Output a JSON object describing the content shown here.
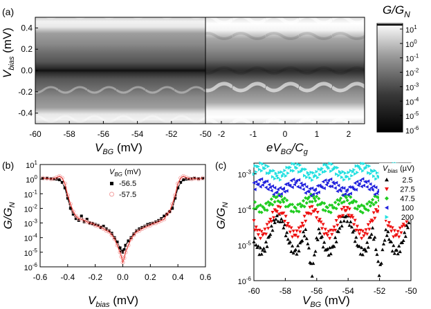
{
  "chart_data": [
    {
      "panel": "(a)",
      "type": "heatmap",
      "subplots": [
        {
          "xlabel_main": "V",
          "xlabel_sub": "BG",
          "xlabel_unit": " (mV)",
          "xlim": [
            -60,
            -50
          ],
          "xticks": [
            "-60",
            "-58",
            "-56",
            "-54",
            "-52",
            "-50"
          ]
        },
        {
          "xlabel_main": "eV",
          "xlabel_sub": "BG",
          "xlabel_tail": "/C",
          "xlabel_tail_sub": "g",
          "xlim": [
            -2.5,
            2.5
          ],
          "xticks": [
            "-2",
            "-1",
            "0",
            "1",
            "2"
          ]
        }
      ],
      "ylabel_main": "V",
      "ylabel_sub": "bias",
      "ylabel_unit": " (mV)",
      "ylim": [
        -0.5,
        0.5
      ],
      "yticks": [
        "0.4",
        "0.2",
        "0.0",
        "-0.2",
        "-0.4"
      ],
      "colorbar": {
        "label_main": "G/G",
        "label_sub": "N",
        "scale": "log",
        "range": [
          1e-06,
          10
        ],
        "ticks": [
          {
            "b": "10",
            "e": "1"
          },
          {
            "b": "10",
            "e": "0"
          },
          {
            "b": "10",
            "e": "-1"
          },
          {
            "b": "10",
            "e": "-2"
          },
          {
            "b": "10",
            "e": "-3"
          },
          {
            "b": "10",
            "e": "-4"
          },
          {
            "b": "10",
            "e": "-5"
          },
          {
            "b": "10",
            "e": "-6"
          }
        ]
      }
    },
    {
      "panel": "(b)",
      "type": "scatter",
      "xlabel_main": "V",
      "xlabel_sub": "bias",
      "xlabel_unit": " (mV)",
      "ylabel_main": "G/G",
      "ylabel_sub": "N",
      "xlim": [
        -0.6,
        0.6
      ],
      "ylim": [
        1e-06,
        10
      ],
      "yscale": "log",
      "xticks": [
        "-0.6",
        "-0.4",
        "-0.2",
        "0.0",
        "0.2",
        "0.4",
        "0.6"
      ],
      "yticks": [
        {
          "b": "10",
          "e": "1"
        },
        {
          "b": "10",
          "e": "0"
        },
        {
          "b": "10",
          "e": "-1"
        },
        {
          "b": "10",
          "e": "-2"
        },
        {
          "b": "10",
          "e": "-3"
        },
        {
          "b": "10",
          "e": "-4"
        },
        {
          "b": "10",
          "e": "-5"
        },
        {
          "b": "10",
          "e": "-6"
        }
      ],
      "legend_title_main": "V",
      "legend_title_sub": "BG",
      "legend_title_unit": " (mV)",
      "series": [
        {
          "name": "-56.5",
          "marker": "square",
          "color": "#000000",
          "line_color": "#000000",
          "x": [
            -0.58,
            -0.55,
            -0.52,
            -0.5,
            -0.48,
            -0.46,
            -0.44,
            -0.42,
            -0.4,
            -0.38,
            -0.36,
            -0.34,
            -0.32,
            -0.3,
            -0.28,
            -0.26,
            -0.24,
            -0.22,
            -0.2,
            -0.18,
            -0.16,
            -0.14,
            -0.12,
            -0.1,
            -0.08,
            -0.06,
            -0.04,
            -0.02,
            -0.01,
            0,
            0.01,
            0.02,
            0.04,
            0.06,
            0.08,
            0.1,
            0.12,
            0.14,
            0.16,
            0.18,
            0.2,
            0.22,
            0.24,
            0.26,
            0.28,
            0.3,
            0.32,
            0.34,
            0.36,
            0.38,
            0.4,
            0.42,
            0.44,
            0.46,
            0.48,
            0.5,
            0.52,
            0.55,
            0.58
          ],
          "y": [
            1.1,
            1.2,
            1.1,
            1.0,
            1.0,
            0.9,
            0.6,
            0.25,
            0.05,
            0.01,
            0.004,
            0.002,
            0.0015,
            0.003,
            0.0012,
            0.0018,
            0.001,
            0.0009,
            0.0008,
            0.0007,
            0.0005,
            0.0006,
            0.0004,
            0.0003,
            0.0002,
            0.0001,
            5e-05,
            2e-05,
            1.2e-05,
            1e-05,
            1.5e-05,
            3e-05,
            6e-05,
            0.0001,
            0.00018,
            0.0003,
            0.0004,
            0.0005,
            0.0006,
            0.0008,
            0.0009,
            0.001,
            0.0012,
            0.0015,
            0.002,
            0.003,
            0.004,
            0.006,
            0.01,
            0.05,
            0.25,
            0.6,
            0.9,
            1.0,
            1.0,
            1.1,
            1.2,
            1.1,
            1.1
          ]
        },
        {
          "name": "-57.5",
          "marker": "open-circle",
          "color": "#f2a0a0",
          "line_color": "#e0241b",
          "x": [
            -0.58,
            -0.55,
            -0.52,
            -0.5,
            -0.48,
            -0.46,
            -0.44,
            -0.42,
            -0.4,
            -0.38,
            -0.36,
            -0.34,
            -0.32,
            -0.3,
            -0.28,
            -0.26,
            -0.24,
            -0.22,
            -0.2,
            -0.18,
            -0.16,
            -0.14,
            -0.12,
            -0.1,
            -0.08,
            -0.06,
            -0.04,
            -0.02,
            -0.01,
            0,
            0.01,
            0.02,
            0.04,
            0.06,
            0.08,
            0.1,
            0.12,
            0.14,
            0.16,
            0.18,
            0.2,
            0.22,
            0.24,
            0.26,
            0.28,
            0.3,
            0.32,
            0.34,
            0.36,
            0.38,
            0.4,
            0.42,
            0.44,
            0.46,
            0.48,
            0.5,
            0.52,
            0.55,
            0.58
          ],
          "y": [
            1.2,
            1.1,
            1.0,
            1.1,
            1.3,
            1.6,
            1.2,
            0.5,
            0.08,
            0.02,
            0.006,
            0.003,
            0.002,
            0.0018,
            0.0015,
            0.0012,
            0.001,
            0.0009,
            0.0007,
            0.0006,
            0.0005,
            0.0004,
            0.0003,
            0.00025,
            0.00015,
            8e-05,
            3e-05,
            1e-05,
            5e-06,
            2e-06,
            4e-06,
            1e-05,
            3e-05,
            8e-05,
            0.00015,
            0.00025,
            0.0003,
            0.0004,
            0.0005,
            0.0006,
            0.0007,
            0.0009,
            0.001,
            0.0012,
            0.0015,
            0.0018,
            0.004,
            0.006,
            0.02,
            0.08,
            0.5,
            1.2,
            1.6,
            1.3,
            1.1,
            1.0,
            1.1,
            1.0,
            1.2
          ]
        }
      ]
    },
    {
      "panel": "(c)",
      "type": "scatter",
      "xlabel_main": "V",
      "xlabel_sub": "BG",
      "xlabel_unit": " (mV)",
      "ylabel_main": "G/G",
      "ylabel_sub": "N",
      "xlim": [
        -60,
        -50
      ],
      "ylim": [
        1e-06,
        0.002
      ],
      "yscale": "log",
      "xticks": [
        "-60",
        "-58",
        "-56",
        "-54",
        "-52",
        "-50"
      ],
      "yticks": [
        {
          "b": "10",
          "e": "-3"
        },
        {
          "b": "10",
          "e": "-4"
        },
        {
          "b": "10",
          "e": "-5"
        },
        {
          "b": "10",
          "e": "-6"
        }
      ],
      "legend_title_main": "V",
      "legend_title_sub": "bias",
      "legend_title_unit": " (µV)",
      "series": [
        {
          "name": "2.5",
          "marker": "triangle-up",
          "color": "#000000",
          "base": 2e-05,
          "amp": 1.1,
          "phase": 0.0,
          "dips": [
            -56.3,
            -52.0
          ],
          "dip_value": 1.5e-06
        },
        {
          "name": "27.5",
          "marker": "triangle-down",
          "color": "#ee1111",
          "base": 4.5e-05,
          "amp": 0.8,
          "phase": 0.0
        },
        {
          "name": "47.5",
          "marker": "diamond",
          "color": "#22cc22",
          "base": 0.00015,
          "amp": 0.35,
          "phase": 0.0
        },
        {
          "name": "100",
          "marker": "triangle-left",
          "color": "#2222dd",
          "base": 0.00043,
          "amp": 0.3,
          "phase": 3.1416
        },
        {
          "name": "200",
          "marker": "triangle-right",
          "color": "#22e0e0",
          "base": 0.0012,
          "amp": 0.3,
          "phase": 3.1416
        }
      ],
      "period_mV": 2.15
    }
  ]
}
